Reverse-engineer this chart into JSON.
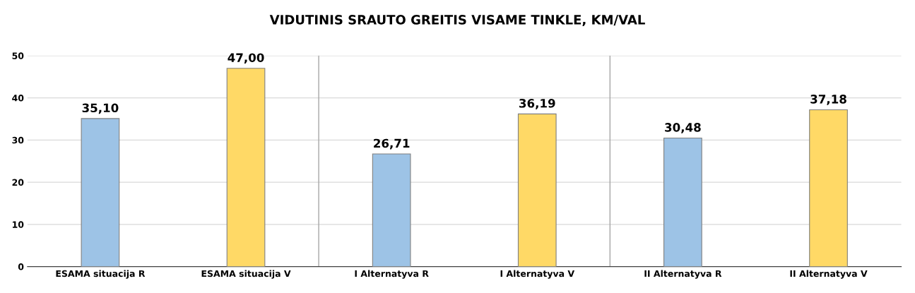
{
  "chart_data": {
    "type": "bar",
    "title": "VIDUTINIS SRAUTO GREITIS VISAME TINKLE, KM/VAL",
    "categories": [
      "ESAMA situacija R",
      "ESAMA situacija V",
      "I Alternatyva R",
      "I Alternatyva V",
      "II Alternatyva R",
      "II Alternatyva V"
    ],
    "values": [
      35.1,
      47.0,
      26.71,
      36.19,
      30.48,
      37.18
    ],
    "value_labels": [
      "35,10",
      "47,00",
      "26,71",
      "36,19",
      "30,48",
      "37,18"
    ],
    "colors": [
      "#9dc3e6",
      "#ffd966",
      "#9dc3e6",
      "#ffd966",
      "#9dc3e6",
      "#ffd966"
    ],
    "ylim": [
      0,
      50
    ],
    "yticks": [
      0,
      10,
      20,
      30,
      40,
      50
    ],
    "grid": "y"
  }
}
